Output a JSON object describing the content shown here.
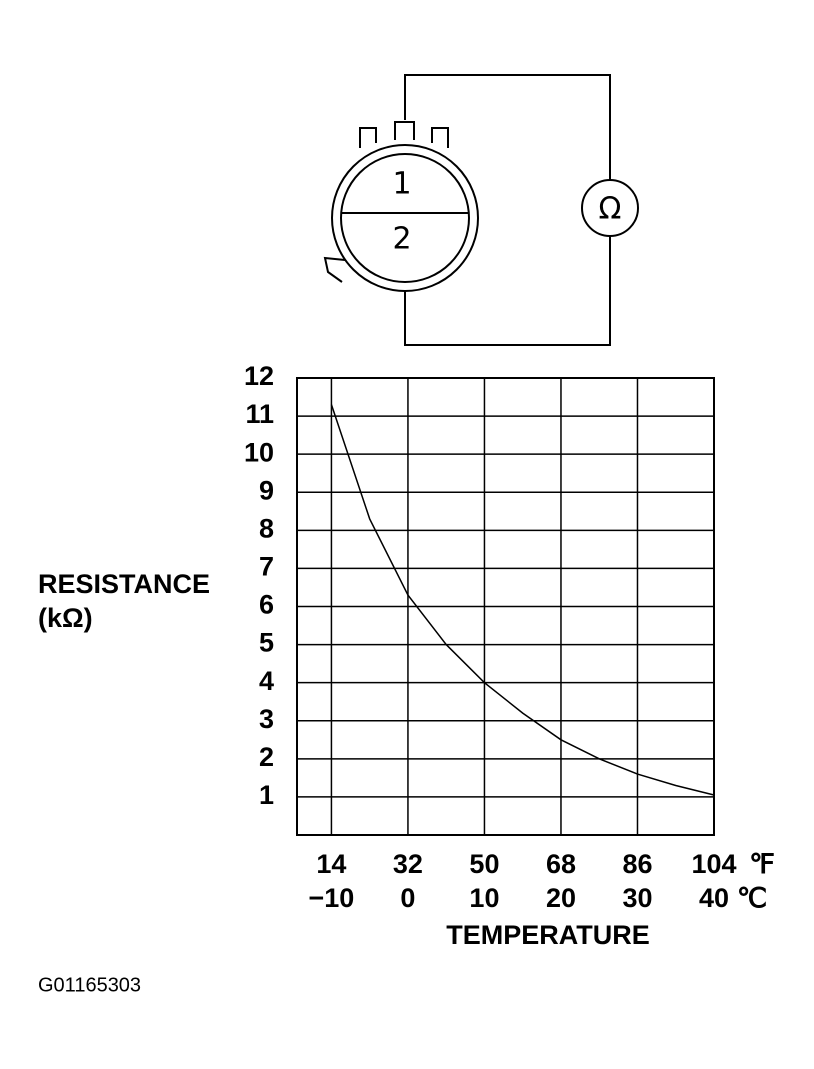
{
  "diagram": {
    "pins": [
      "1",
      "2"
    ],
    "meter": "Ω"
  },
  "chart_data": {
    "type": "line",
    "y_label": [
      "RESISTANCE",
      "(kΩ)"
    ],
    "x_label": "TEMPERATURE",
    "x_unit": "℃",
    "x2_unit": "℉",
    "x": [
      -10,
      -5,
      0,
      5,
      10,
      15,
      20,
      25,
      30,
      35,
      40
    ],
    "series": [
      {
        "name": "Resistance",
        "color": "#000000",
        "values": [
          11.3,
          8.3,
          6.3,
          5.0,
          4.0,
          3.2,
          2.5,
          2.0,
          1.6,
          1.3,
          1.05
        ]
      }
    ],
    "xlim": [
      -14.5,
      40
    ],
    "xticks": [
      {
        "value": -10,
        "label": "−10"
      },
      0,
      10,
      20,
      30,
      40
    ],
    "x2ticks": [
      {
        "value": -10,
        "label": "14"
      },
      {
        "value": 0,
        "label": "32"
      },
      {
        "value": 10,
        "label": "50"
      },
      {
        "value": 20,
        "label": "68"
      },
      {
        "value": 30,
        "label": "86"
      },
      {
        "value": 40,
        "label": "104"
      }
    ],
    "ylim": [
      0,
      12
    ],
    "yticks": [
      1,
      2,
      3,
      4,
      5,
      6,
      7,
      8,
      9,
      10,
      11,
      12
    ],
    "grid": true
  },
  "figure_id": "G01165303"
}
